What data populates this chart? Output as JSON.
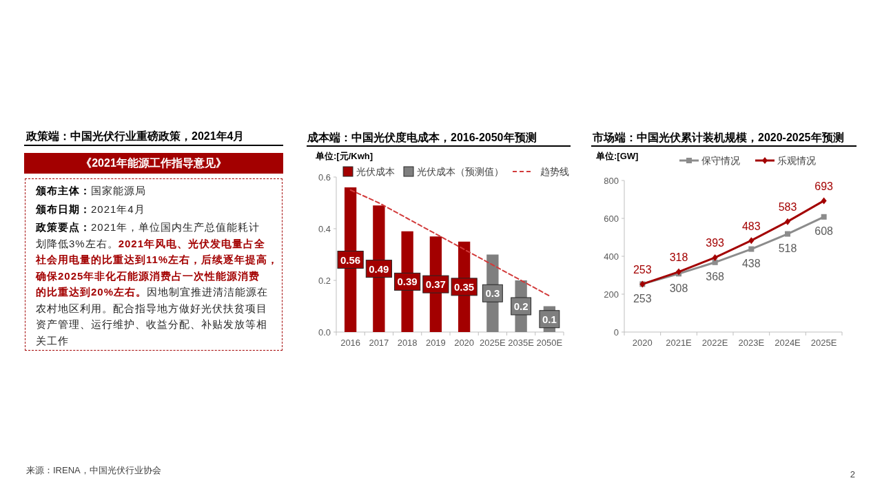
{
  "chart_data": [
    {
      "type": "other",
      "title": "政策端：中国光伏行业重磅政策，2021年4月",
      "subtitle": "《2021年能源工作指导意见》",
      "annotations": [
        "颁布主体：国家能源局",
        "颁布日期：2021年4月",
        "政策要点：2021年，单位国内生产总值能耗计划降低3%左右。2021年风电、光伏发电量占全社会用电量的比重达到11%左右，后续逐年提高，确保2025年非化石能源消费占一次性能源消费的比重达到20%左右。因地制宜推进清洁能源在农村地区利用。配合指导地方做好光伏扶贫项目资产管理、运行维护、收益分配、补贴发放等相关工作"
      ]
    },
    {
      "type": "bar",
      "title": "成本端：中国光伏度电成本，2016-2050年预测",
      "ylabel": "单位:[元/Kwh]",
      "categories": [
        "2016",
        "2017",
        "2018",
        "2019",
        "2020",
        "2025E",
        "2035E",
        "2050E"
      ],
      "stacked": true,
      "series": [
        {
          "name": "光伏成本",
          "color": "#a30000",
          "values": [
            0.56,
            0.49,
            0.39,
            0.37,
            0.35,
            null,
            null,
            null
          ],
          "value_labels": [
            "0.56",
            "0.49",
            "0.39",
            "0.37",
            "0.35",
            null,
            null,
            null
          ]
        },
        {
          "name": "光伏成本（预测值）",
          "color": "#7f7f7f",
          "values": [
            null,
            null,
            null,
            null,
            null,
            0.3,
            0.2,
            0.1
          ],
          "value_labels": [
            null,
            null,
            null,
            null,
            null,
            "0.3",
            "0.2",
            "0.1"
          ]
        },
        {
          "name": "趋势线",
          "type": "line",
          "color": "#d23b3b",
          "line_style": "dashed",
          "values": [
            0.55,
            0.5,
            0.44,
            0.38,
            0.32,
            0.26,
            0.2,
            0.14
          ]
        }
      ],
      "ylim": [
        0,
        0.6
      ],
      "yticks": [
        {
          "value": 0,
          "label": "0.0"
        },
        0.2,
        0.4,
        0.6
      ],
      "legend": "top"
    },
    {
      "type": "line",
      "title": "市场端：中国光伏累计装机规模，2020-2025年预测",
      "ylabel": "单位:[GW]",
      "categories": [
        "2020",
        "2021E",
        "2022E",
        "2023E",
        "2024E",
        "2025E"
      ],
      "series": [
        {
          "name": "保守情况",
          "color": "#8c8c8c",
          "marker": "square",
          "values": [
            253,
            308,
            368,
            438,
            518,
            608
          ]
        },
        {
          "name": "乐观情况",
          "color": "#a30000",
          "marker": "diamond",
          "values": [
            253,
            318,
            393,
            483,
            583,
            693
          ]
        }
      ],
      "ylim": [
        0,
        800
      ],
      "yticks": [
        0,
        200,
        400,
        600,
        800
      ],
      "data_labels": true,
      "legend": "top"
    },
    {
      "type": "other",
      "annotations": [
        "来源：IRENA，中国光伏行业协会",
        "2"
      ]
    }
  ]
}
